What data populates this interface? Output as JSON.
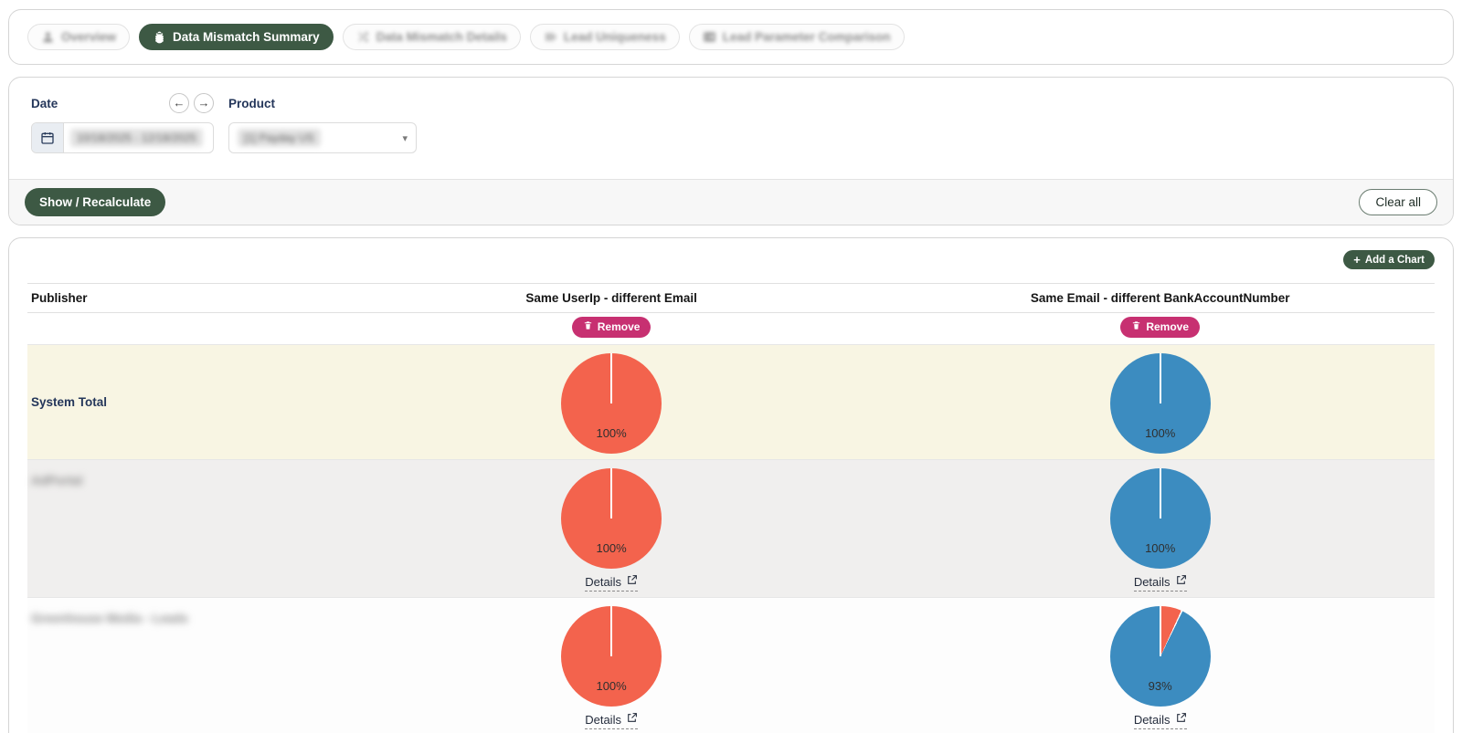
{
  "palette": {
    "accent_green": "#3d5944",
    "remove_pink": "#c73071",
    "orange": "#f3634d",
    "blue": "#3c8cc0",
    "highlight_cream": "#f8f5e3",
    "row_gray": "#f0efee"
  },
  "tabs": [
    {
      "label": "Overview",
      "icon": "user",
      "active": false,
      "blurred": true
    },
    {
      "label": "Data Mismatch Summary",
      "icon": "bug",
      "active": true,
      "blurred": false
    },
    {
      "label": "Data Mismatch Details",
      "icon": "shuffle",
      "active": false,
      "blurred": true
    },
    {
      "label": "Lead Uniqueness",
      "icon": "bars",
      "active": false,
      "blurred": true
    },
    {
      "label": "Lead Parameter Comparison",
      "icon": "card",
      "active": false,
      "blurred": true
    }
  ],
  "filters": {
    "date_label": "Date",
    "date_value": "10/18/2025 - 12/18/2025",
    "date_value_redacted": true,
    "product_label": "Product",
    "product_value": "[1] Payday US",
    "product_value_redacted": true,
    "show_button": "Show / Recalculate",
    "clear_button": "Clear all"
  },
  "chart_section": {
    "add_chart_label": "Add a Chart"
  },
  "table": {
    "columns": [
      "Publisher",
      "Same UserIp - different Email",
      "Same Email - different BankAccountNumber"
    ],
    "remove_label": "Remove",
    "details_label": "Details",
    "rows": [
      {
        "publisher": "System Total",
        "redacted": false,
        "bg": "cream",
        "show_details": false,
        "pies": [
          {
            "label": "100%",
            "main_pct": 100,
            "main_color_name": "orange"
          },
          {
            "label": "100%",
            "main_pct": 100,
            "main_color_name": "blue"
          }
        ]
      },
      {
        "publisher": "AdPortal",
        "redacted": true,
        "bg": "gray",
        "show_details": true,
        "pies": [
          {
            "label": "100%",
            "main_pct": 100,
            "main_color_name": "orange"
          },
          {
            "label": "100%",
            "main_pct": 100,
            "main_color_name": "blue"
          }
        ]
      },
      {
        "publisher": "Greenhouse Media - Leads",
        "redacted": true,
        "bg": "white",
        "show_details": true,
        "pies": [
          {
            "label": "100%",
            "main_pct": 100,
            "main_color_name": "orange"
          },
          {
            "label": "93%",
            "main_pct": 93,
            "main_color_name": "blue",
            "secondary_color_name": "orange"
          }
        ]
      }
    ]
  },
  "chart_data": [
    {
      "type": "pie",
      "row": "System Total",
      "title": "Same UserIp - different Email",
      "slices": [
        {
          "label": "100%",
          "value": 100,
          "color": "#f3634d"
        }
      ]
    },
    {
      "type": "pie",
      "row": "System Total",
      "title": "Same Email - different BankAccountNumber",
      "slices": [
        {
          "label": "100%",
          "value": 100,
          "color": "#3c8cc0"
        }
      ]
    },
    {
      "type": "pie",
      "row": "publisher (redacted)",
      "title": "Same UserIp - different Email",
      "slices": [
        {
          "label": "100%",
          "value": 100,
          "color": "#f3634d"
        }
      ]
    },
    {
      "type": "pie",
      "row": "publisher (redacted)",
      "title": "Same Email - different BankAccountNumber",
      "slices": [
        {
          "label": "100%",
          "value": 100,
          "color": "#3c8cc0"
        }
      ]
    },
    {
      "type": "pie",
      "row": "publisher 2 (redacted)",
      "title": "Same UserIp - different Email",
      "slices": [
        {
          "label": "100%",
          "value": 100,
          "color": "#f3634d"
        }
      ]
    },
    {
      "type": "pie",
      "row": "publisher 2 (redacted)",
      "title": "Same Email - different BankAccountNumber",
      "slices": [
        {
          "label": "93%",
          "value": 93,
          "color": "#3c8cc0"
        },
        {
          "label": "",
          "value": 7,
          "color": "#f3634d"
        }
      ]
    }
  ]
}
